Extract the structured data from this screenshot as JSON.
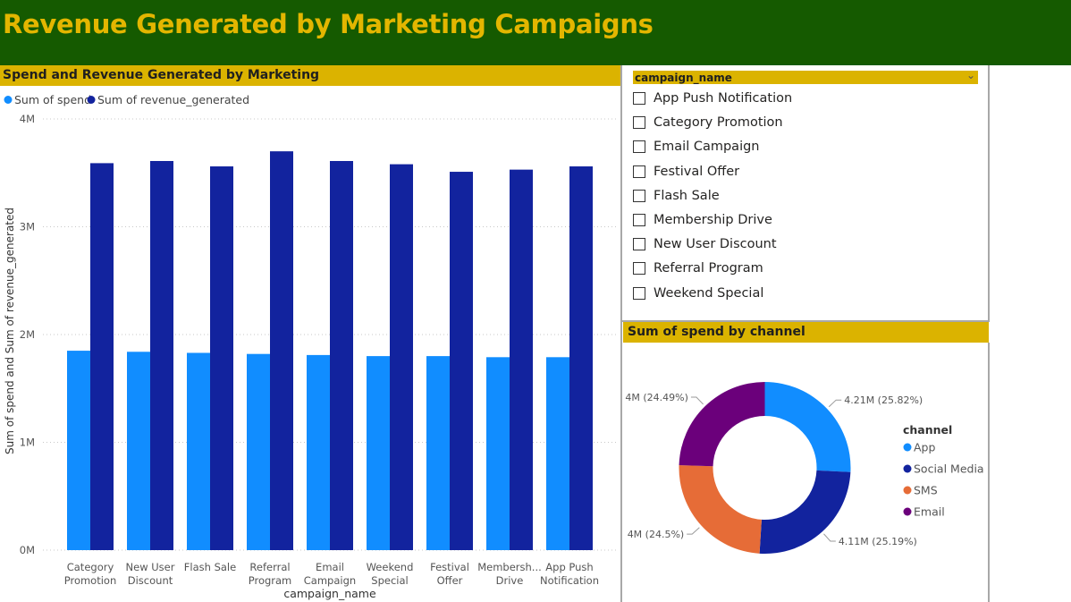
{
  "page_title": "Revenue Generated by Marketing Campaigns",
  "colors": {
    "header_bg": "#155a00",
    "title_text": "#e3b600",
    "panel_title_bg": "#dbb300",
    "spend": "#118dff",
    "revenue": "#12239e"
  },
  "bar_panel": {
    "title": "Spend and Revenue Generated by Marketing",
    "legend": [
      {
        "label": "Sum of spend",
        "color": "#118dff"
      },
      {
        "label": "Sum of revenue_generated",
        "color": "#12239e"
      }
    ]
  },
  "slicer": {
    "label": "campaign_name",
    "items": [
      "App Push Notification",
      "Category Promotion",
      "Email Campaign",
      "Festival Offer",
      "Flash Sale",
      "Membership Drive",
      "New User Discount",
      "Referral Program",
      "Weekend Special"
    ]
  },
  "donut_panel": {
    "title": "Sum of spend by channel",
    "legend_title": "channel"
  },
  "chart_data": [
    {
      "type": "bar",
      "title": "Spend and Revenue Generated by Marketing",
      "xlabel": "campaign_name",
      "ylabel": "Sum of spend and Sum of revenue_generated",
      "ylim": [
        0,
        4000000
      ],
      "yticks": [
        "0M",
        "1M",
        "2M",
        "3M",
        "4M"
      ],
      "categories": [
        [
          "Category",
          "Promotion"
        ],
        [
          "New User",
          "Discount"
        ],
        [
          "Flash Sale"
        ],
        [
          "Referral",
          "Program"
        ],
        [
          "Email",
          "Campaign"
        ],
        [
          "Weekend",
          "Special"
        ],
        [
          "Festival",
          "Offer"
        ],
        [
          "Membersh...",
          "Drive"
        ],
        [
          "App Push",
          "Notification"
        ]
      ],
      "series": [
        {
          "name": "Sum of spend",
          "color": "#118dff",
          "values": [
            1850000,
            1840000,
            1830000,
            1820000,
            1810000,
            1800000,
            1800000,
            1790000,
            1790000
          ]
        },
        {
          "name": "Sum of revenue_generated",
          "color": "#12239e",
          "values": [
            3590000,
            3610000,
            3560000,
            3700000,
            3610000,
            3580000,
            3510000,
            3530000,
            3560000
          ]
        }
      ],
      "legend": "top-left",
      "grid": true
    },
    {
      "type": "pie",
      "title": "Sum of spend by channel",
      "legend_title": "channel",
      "legend": "right",
      "slices": [
        {
          "label": "App",
          "value": 4210000,
          "percent": 25.82,
          "display": "4.21M (25.82%)",
          "color": "#118dff"
        },
        {
          "label": "Social Media",
          "value": 4110000,
          "percent": 25.19,
          "display": "4.11M (25.19%)",
          "color": "#12239e"
        },
        {
          "label": "SMS",
          "value": 4000000,
          "percent": 24.5,
          "display": "4M (24.5%)",
          "color": "#e66c37"
        },
        {
          "label": "Email",
          "value": 4000000,
          "percent": 24.49,
          "display": "4M (24.49%)",
          "color": "#6b007b"
        }
      ]
    }
  ]
}
